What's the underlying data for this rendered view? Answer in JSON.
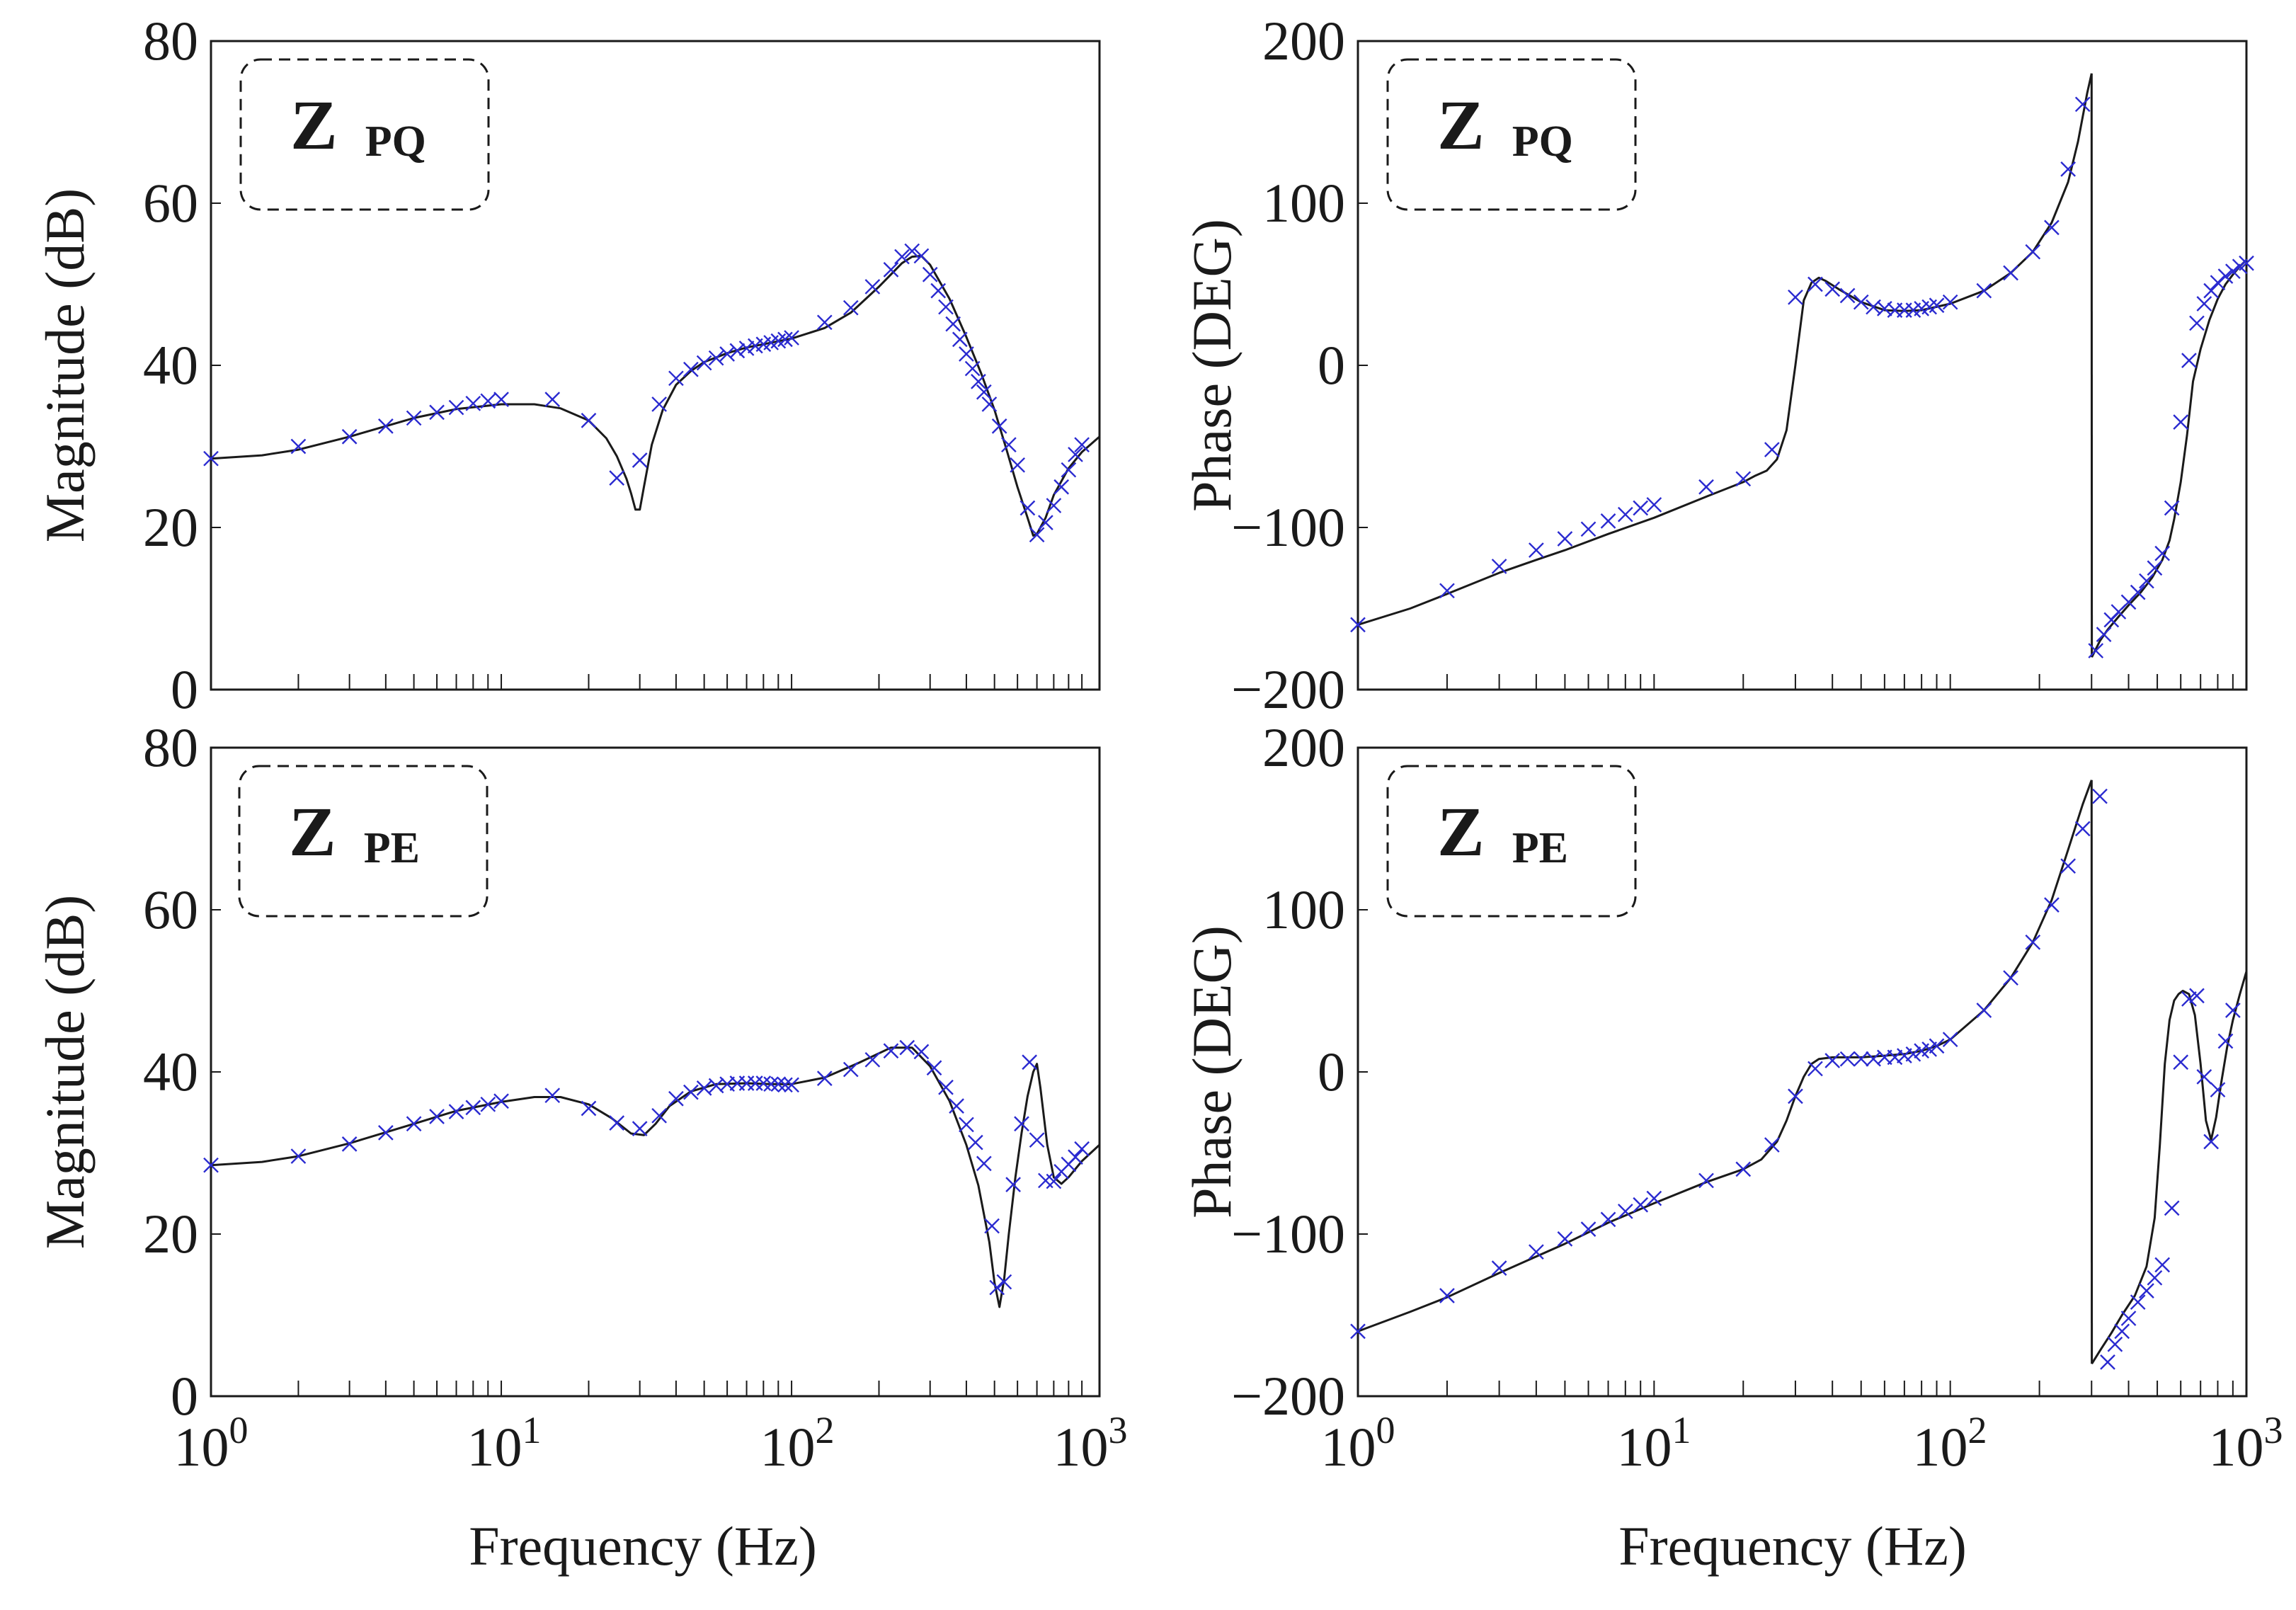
{
  "figure": {
    "x_axis_label": "Frequency (Hz)",
    "x_tick_labels": [
      {
        "base": "10",
        "exp": "0"
      },
      {
        "base": "10",
        "exp": "1"
      },
      {
        "base": "10",
        "exp": "2"
      },
      {
        "base": "10",
        "exp": "3"
      }
    ]
  },
  "colors": {
    "fit_line": "#1a1a1a",
    "measured_marker": "#2a2ad0",
    "axes": "#1a1a1a",
    "badge_border": "#1a1a1a"
  },
  "chart_data": [
    {
      "id": "mag-pq",
      "type": "line",
      "title": "",
      "badge": {
        "main": "Z",
        "sub": "PQ"
      },
      "xlabel": "Frequency (Hz)",
      "ylabel": "Magnitude (dB)",
      "xscale": "log",
      "xlim": [
        1,
        1150
      ],
      "ylim": [
        0,
        80
      ],
      "yticks": [
        0,
        20,
        40,
        60,
        80
      ],
      "ytick_labels": [
        "0",
        "20",
        "40",
        "60",
        "80"
      ],
      "series": [
        {
          "name": "model",
          "style": "line",
          "x": [
            1,
            1.5,
            2,
            3,
            4,
            5,
            7,
            10,
            13,
            16,
            20,
            23,
            25,
            27,
            28,
            29,
            30,
            31,
            33,
            36,
            40,
            45,
            50,
            60,
            70,
            80,
            100,
            130,
            160,
            200,
            240,
            260,
            280,
            300,
            350,
            400,
            450,
            500,
            550,
            600,
            650,
            680,
            700,
            750,
            800,
            900,
            1000,
            1150
          ],
          "y": [
            28.5,
            28.9,
            29.6,
            31.2,
            32.5,
            33.5,
            34.6,
            35.2,
            35.2,
            34.7,
            33.2,
            31,
            28.8,
            26,
            24.2,
            22.2,
            22.2,
            25,
            30.2,
            34.5,
            37.6,
            39.3,
            40.4,
            41.5,
            42.2,
            42.6,
            43.3,
            44.6,
            46.5,
            49.7,
            52.6,
            53.4,
            53.5,
            52.4,
            48.2,
            43.5,
            39,
            34.5,
            29.6,
            25,
            21.2,
            19,
            19.2,
            21.2,
            24,
            27.3,
            29.3,
            31.2
          ]
        },
        {
          "name": "measured",
          "style": "markers",
          "x": [
            1,
            2,
            3,
            4,
            5,
            6,
            7,
            8,
            9,
            10,
            15,
            20,
            25,
            30,
            35,
            40,
            45,
            50,
            55,
            60,
            65,
            70,
            75,
            80,
            85,
            90,
            95,
            100,
            130,
            160,
            190,
            220,
            240,
            260,
            280,
            300,
            320,
            340,
            360,
            380,
            400,
            420,
            440,
            460,
            480,
            520,
            560,
            600,
            650,
            700,
            750,
            800,
            850,
            900,
            950,
            1000
          ],
          "y": [
            28.5,
            30,
            31.2,
            32.5,
            33.5,
            34.2,
            34.8,
            35.3,
            35.6,
            35.8,
            35.8,
            33.2,
            26.1,
            28.3,
            35.2,
            38.4,
            39.5,
            40.3,
            40.9,
            41.4,
            41.8,
            42.1,
            42.4,
            42.6,
            42.8,
            43,
            43.2,
            43.4,
            45.3,
            47.1,
            49.7,
            51.8,
            53.4,
            54.1,
            53.5,
            51.2,
            49.2,
            47.2,
            45.1,
            43.2,
            41.4,
            39.6,
            38,
            36.7,
            35.2,
            32.5,
            30.2,
            27.7,
            22.4,
            19.1,
            20.6,
            22.7,
            25,
            27.1,
            29,
            30.2
          ]
        }
      ]
    },
    {
      "id": "phase-pq",
      "type": "line",
      "title": "",
      "badge": {
        "main": "Z",
        "sub": "PQ"
      },
      "xlabel": "Frequency (Hz)",
      "ylabel": "Phase (DEG)",
      "xscale": "log",
      "xlim": [
        1,
        1000
      ],
      "ylim": [
        -200,
        200
      ],
      "yticks": [
        -200,
        -100,
        0,
        100,
        200
      ],
      "ytick_labels": [
        "−200",
        "−100",
        "0",
        "100",
        "200"
      ],
      "series": [
        {
          "name": "model",
          "style": "line",
          "segments": [
            {
              "x": [
                1,
                1.5,
                2,
                3,
                4,
                5,
                7,
                10,
                15,
                20,
                22,
                24,
                26,
                28,
                30,
                32,
                34,
                36,
                38,
                42,
                50,
                60,
                70,
                80,
                100,
                130,
                160,
                190,
                220,
                250,
                270,
                290,
                300
              ],
              "y": [
                -160,
                -150,
                -141,
                -128,
                -120,
                -114,
                -104,
                -94,
                -81,
                -72,
                -68,
                -65,
                -58,
                -40,
                0,
                40,
                51,
                54,
                52,
                47,
                39,
                34,
                33.5,
                34,
                38,
                46,
                57,
                70,
                88,
                113,
                138,
                168,
                180
              ]
            },
            {
              "x": [
                300,
                300.5
              ],
              "y": [
                180,
                -180
              ]
            },
            {
              "x": [
                300.5,
                320,
                340,
                370,
                400,
                440,
                480,
                520,
                550,
                570,
                600,
                630,
                660,
                700,
                750,
                800,
                850,
                900,
                950,
                1000
              ],
              "y": [
                -180,
                -170,
                -163,
                -155,
                -148,
                -140,
                -131,
                -120,
                -108,
                -95,
                -72,
                -43,
                -10,
                10,
                28,
                41,
                50,
                56,
                61,
                65
              ]
            }
          ]
        },
        {
          "name": "measured",
          "style": "markers",
          "x": [
            1,
            2,
            3,
            4,
            5,
            6,
            7,
            8,
            9,
            10,
            15,
            20,
            25,
            30,
            35,
            40,
            45,
            50,
            55,
            60,
            65,
            70,
            75,
            80,
            85,
            90,
            100,
            130,
            160,
            190,
            220,
            250,
            280,
            310,
            330,
            350,
            370,
            400,
            430,
            460,
            490,
            520,
            560,
            600,
            640,
            680,
            720,
            760,
            800,
            850,
            900,
            950,
            1000
          ],
          "y": [
            -160,
            -139,
            -124,
            -114,
            -107,
            -101,
            -96,
            -92,
            -88,
            -86,
            -75,
            -70,
            -52,
            42,
            50,
            47,
            43,
            39,
            36,
            35,
            34,
            34,
            34,
            35,
            36,
            37,
            39,
            46,
            57,
            70,
            85,
            121,
            161,
            -176,
            -166,
            -157,
            -152,
            -146,
            -140,
            -133,
            -125,
            -116,
            -88,
            -35,
            3,
            26,
            38,
            46,
            51,
            55,
            58,
            61,
            63
          ]
        }
      ]
    },
    {
      "id": "mag-pe",
      "type": "line",
      "title": "",
      "badge": {
        "main": "Z",
        "sub": "PE"
      },
      "xlabel": "Frequency (Hz)",
      "ylabel": "Magnitude (dB)",
      "xscale": "log",
      "xlim": [
        1,
        1150
      ],
      "ylim": [
        0,
        80
      ],
      "yticks": [
        0,
        20,
        40,
        60,
        80
      ],
      "ytick_labels": [
        "0",
        "20",
        "40",
        "60",
        "80"
      ],
      "series": [
        {
          "name": "model",
          "style": "line",
          "x": [
            1,
            1.5,
            2,
            3,
            5,
            7,
            10,
            13,
            16,
            20,
            24,
            28,
            31,
            34,
            38,
            45,
            55,
            70,
            85,
            100,
            130,
            170,
            220,
            260,
            300,
            350,
            400,
            440,
            480,
            500,
            520,
            540,
            560,
            590,
            620,
            650,
            680,
            700,
            720,
            760,
            800,
            850,
            900,
            1000,
            1150
          ],
          "y": [
            28.5,
            28.9,
            29.6,
            31.2,
            33.6,
            35.2,
            36.3,
            36.9,
            36.9,
            36,
            34.3,
            32.4,
            32.2,
            33.6,
            35.8,
            37.6,
            38.5,
            38.6,
            38.5,
            38.5,
            39.3,
            41.1,
            43,
            43,
            40.7,
            36.4,
            31,
            26,
            19,
            14,
            11,
            14.5,
            20,
            27,
            32.5,
            37,
            40,
            41,
            38,
            31,
            27,
            26.2,
            27,
            29,
            31
          ]
        },
        {
          "name": "measured",
          "style": "markers",
          "x": [
            1,
            2,
            3,
            4,
            5,
            6,
            7,
            8,
            9,
            10,
            15,
            20,
            25,
            30,
            35,
            40,
            45,
            50,
            55,
            60,
            65,
            70,
            75,
            80,
            85,
            90,
            95,
            100,
            130,
            160,
            190,
            220,
            250,
            280,
            310,
            340,
            370,
            400,
            430,
            460,
            490,
            510,
            540,
            580,
            620,
            660,
            700,
            750,
            800,
            850,
            900,
            950,
            1000
          ],
          "y": [
            28.5,
            29.6,
            31.1,
            32.5,
            33.6,
            34.5,
            35.1,
            35.6,
            36,
            36.4,
            37.1,
            35.5,
            33.7,
            33,
            34.6,
            36.7,
            37.5,
            38,
            38.3,
            38.5,
            38.6,
            38.6,
            38.6,
            38.6,
            38.5,
            38.5,
            38.4,
            38.4,
            39.2,
            40.3,
            41.5,
            42.6,
            43,
            42.5,
            40.5,
            38.1,
            35.8,
            33.5,
            31.3,
            28.7,
            21,
            13.4,
            14.1,
            26.1,
            33.6,
            41.2,
            31.6,
            26.6,
            26.5,
            27.7,
            28.6,
            29.5,
            30.5
          ]
        }
      ]
    },
    {
      "id": "phase-pe",
      "type": "line",
      "title": "",
      "badge": {
        "main": "Z",
        "sub": "PE"
      },
      "xlabel": "Frequency (Hz)",
      "ylabel": "Phase (DEG)",
      "xscale": "log",
      "xlim": [
        1,
        1000
      ],
      "ylim": [
        -200,
        200
      ],
      "yticks": [
        -200,
        -100,
        0,
        100,
        200
      ],
      "ytick_labels": [
        "−200",
        "−100",
        "0",
        "100",
        "200"
      ],
      "series": [
        {
          "name": "model",
          "style": "line",
          "segments": [
            {
              "x": [
                1,
                1.5,
                2,
                3,
                5,
                7,
                10,
                15,
                20,
                23,
                26,
                28,
                30,
                32,
                34,
                36,
                40,
                50,
                60,
                70,
                80,
                90,
                100,
                130,
                160,
                190,
                220,
                250,
                280,
                300
              ],
              "y": [
                -160,
                -148,
                -139,
                -124,
                -106,
                -93,
                -81,
                -68,
                -60,
                -54,
                -43,
                -30,
                -15,
                -3,
                5,
                8,
                9,
                9,
                10,
                11,
                13,
                16,
                20,
                38,
                58,
                80,
                106,
                137,
                165,
                180
              ]
            },
            {
              "x": [
                300,
                300.5
              ],
              "y": [
                180,
                -180
              ]
            },
            {
              "x": [
                300.5,
                320,
                350,
                380,
                420,
                460,
                490,
                510,
                530,
                550,
                570,
                590,
                610,
                640,
                670,
                700,
                730,
                760,
                790,
                820,
                860,
                900,
                950,
                1000
              ],
              "y": [
                -180,
                -172,
                -161,
                -150,
                -138,
                -120,
                -90,
                -45,
                5,
                32,
                44,
                48,
                50,
                48,
                35,
                5,
                -30,
                -42,
                -28,
                -8,
                15,
                32,
                48,
                62
              ]
            }
          ]
        },
        {
          "name": "measured",
          "style": "markers",
          "x": [
            1,
            2,
            3,
            4,
            5,
            6,
            7,
            8,
            9,
            10,
            15,
            20,
            25,
            30,
            35,
            40,
            45,
            50,
            55,
            60,
            65,
            70,
            75,
            80,
            85,
            90,
            100,
            130,
            160,
            190,
            220,
            250,
            280,
            320,
            340,
            360,
            380,
            400,
            430,
            460,
            490,
            520,
            560,
            600,
            640,
            680,
            720,
            760,
            800,
            850,
            900
          ],
          "y": [
            -160,
            -138,
            -121,
            -111,
            -103,
            -97,
            -91,
            -86,
            -82,
            -78,
            -67,
            -60,
            -45,
            -15,
            2,
            7,
            8,
            8,
            8,
            9,
            9,
            10,
            11,
            13,
            14,
            16,
            20,
            38,
            58,
            80,
            103,
            127,
            150,
            170,
            -179,
            -168,
            -160,
            -152,
            -142,
            -135,
            -127,
            -119,
            -84,
            6,
            45,
            47,
            -3,
            -43,
            -11,
            19,
            38
          ]
        }
      ]
    }
  ]
}
